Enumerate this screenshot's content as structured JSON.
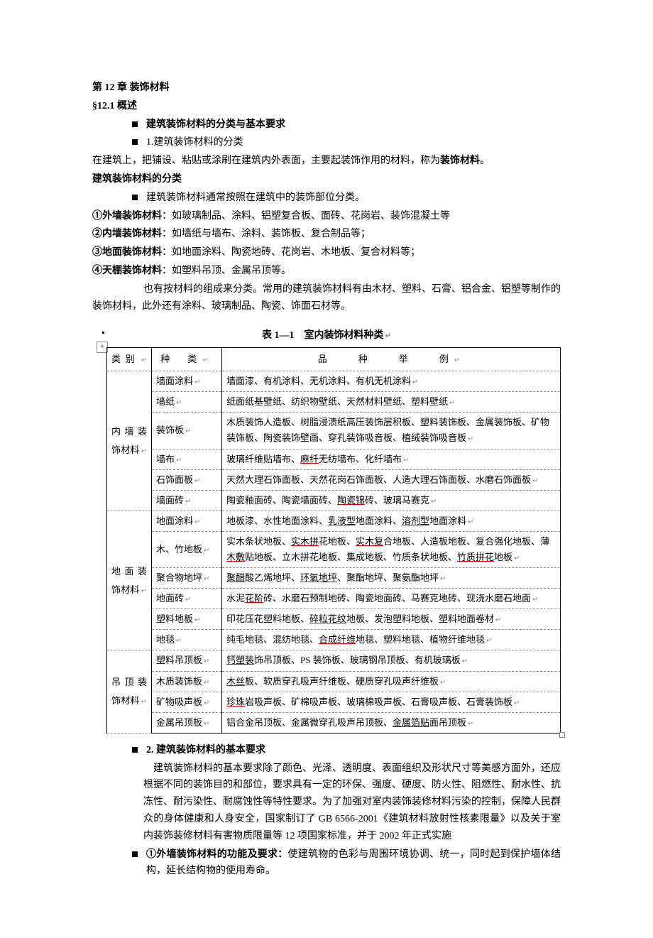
{
  "chapter": "第 12 章  装饰材料",
  "s1_title": "§12.1 概述",
  "b1": "建筑装饰材料的分类与基本要求",
  "b2": "1.建筑装饰材料的分类",
  "p1": "在建筑上，把铺设、粘贴或涂刷在建筑内外表面，主要起装饰作用的材料，称为",
  "p1_bold": "装饰材料",
  "p1_end": "。",
  "h2": "建筑装饰材料的分类",
  "b3": "建筑装饰材料通常按照在建筑中的装饰部位分类。",
  "li1a": "①外墙装饰材料",
  "li1b": "：如玻璃制品、涂料、铝塑复合板、面砖、花岗岩、装饰混凝土等",
  "li2a": "②内墙装饰材料",
  "li2b": "：如墙纸与墙布、涂料、装饰板、复合制品等；",
  "li3a": "③地面装饰材料",
  "li3b": "：如地面涂料、陶瓷地砖、花岗岩、木地板、复合材料等；",
  "li4a": "④天棚装饰材料",
  "li4b": "：如塑料吊顶、金属吊顶等。",
  "p2": "也有按材料的组成来分类。常用的建筑装饰材料有由木材、塑料、石膏、铝合金、铝塑等制作的装饰材料，此外还有涂料、玻璃制品、陶瓷、饰面石材等。",
  "table_caption": "表 1—1　室内装饰材料种类",
  "thead": {
    "c1": "类别",
    "c2": "种　类",
    "c3": "品　　种　　举　　例"
  },
  "rows": [
    {
      "cat": "内墙装饰材料",
      "span": 6,
      "kind": "墙面涂料",
      "ex": "墙面漆、有机涂料、无机涂料、有机无机涂料"
    },
    {
      "kind": "墙纸",
      "ex": "纸面纸基壁纸、纺织物壁纸、天然材料壁纸、塑料壁纸"
    },
    {
      "kind": "装饰板",
      "ex": "木质装饰人造板、树脂浸渍纸高压装饰层积板、塑料装饰板、金属装饰板、矿物装饰板、陶瓷装饰壁画、穿孔装饰吸音板、植绒装饰吸音板"
    },
    {
      "kind": "墙布",
      "ex_html": "玻璃纤维贴墙布、<u>麻纤</u>无纺墙布、化纤墙布"
    },
    {
      "kind": "石饰面板",
      "ex": "天然大理石饰面板、天然花岗石饰面板、人造大理石饰面板、水磨石饰面板"
    },
    {
      "kind": "墙面砖",
      "ex_html": "陶瓷釉面砖、陶瓷墙面砖、<u>陶瓷锦</u>砖、玻璃马赛克"
    },
    {
      "cat": "地面装饰材料",
      "span": 6,
      "kind": "地面涂料",
      "ex_html": "地板漆、水性地面涂料、<u>乳液型</u>地面涂料、<u>溶剂型</u>地面涂料"
    },
    {
      "kind": "木、竹地板",
      "ex_html": "实木条状地板、<u>实木拼</u>花地板、<u>实木复</u>合地板、人造板地板、复合强化地板、薄<u>木敷</u>贴地板、立木拼花地板、集成地板、竹质条状地板、<u>竹质拼花</u>地板"
    },
    {
      "kind": "聚合物地坪",
      "ex_html": "<u>聚醋</u>酸乙烯地坪、<u>环氧地坪</u>、聚酯地坪、聚氨酯地坪"
    },
    {
      "kind": "地面砖",
      "ex_html": "水泥<u>花阶</u>砖、水磨石预制地砖、陶瓷地面砖、马赛克地砖、现浇水磨石地面"
    },
    {
      "kind": "塑料地板",
      "ex_html": "印花压花塑料地板、<u>碎粒花纹</u>地板、发泡塑料地板、塑料地面卷材"
    },
    {
      "kind": "地毯",
      "ex_html": "纯毛地毯、混纺地毯、<u>合成纤维</u>地毯、塑料地毯、植物纤维地毯"
    },
    {
      "cat": "吊顶装饰材料",
      "span": 4,
      "kind": "塑料吊顶板",
      "ex_html": "<u>钙塑装</u>饰吊顶板、PS 装饰板、玻璃钢吊顶板、有机玻璃板"
    },
    {
      "kind": "木质装饰板",
      "ex_html": "<u>木丝</u>板、软质穿孔吸声纤维板、硬质穿孔吸声纤维板"
    },
    {
      "kind": "矿物吸声板",
      "ex_html": "<u>珍珠</u>岩吸声板、矿棉吸声板、玻璃棉吸声板、石膏吸声板、石膏装饰板"
    },
    {
      "kind": "金属吊顶板",
      "ex_html": "铝合金吊顶板、金属微穿孔吸声吊顶板、<u>金属箔贴</u>面吊顶板"
    }
  ],
  "b4": "2. 建筑装饰材料的基本要求",
  "p3": "建筑装饰材料的基本要求除了颜色、光泽、透明度、表面组织及形状尺寸等美感方面外，还应根据不同的装饰目的和部位，要求具有一定的环保、强度、硬度、防火性、阻燃性、耐水性、抗冻性、耐污染性、耐腐蚀性等特性要求。为了加强对室内装饰装修材料污染的控制，保障人民群众的身体健康和人身安全，国家制订了 GB 6566-2001《建筑材料放射性核素限量》以及关于室内装饰装修材料有害物质限量等 12 项国家标准，并于 2002 年正式实施",
  "b5a": "①外墙装饰材料的功能及要求：",
  "b5b": "使建筑物的色彩与周围环境协调、统一，同时起到保护墙体结构，延长结构物的使用寿命。"
}
